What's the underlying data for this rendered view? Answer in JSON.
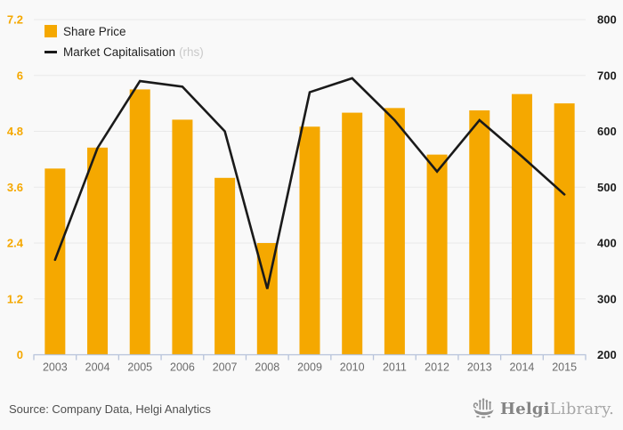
{
  "colors": {
    "accent": "#F5A800",
    "line": "#1a1a1a",
    "grid": "#e9e9e9",
    "axis": "#b7c3da",
    "left_tick_text": "#F5A800",
    "right_tick_text": "#1c1c1c",
    "year_text": "#6b6b6b",
    "legend_text": "#222222",
    "rhs_text": "#c9c9c9",
    "source_text": "#4f4f4f",
    "logo_dark": "#848484",
    "logo_light": "#a8a8a8",
    "bg": "#f9f9f9"
  },
  "legend": {
    "items": [
      {
        "label": "Share Price",
        "type": "bar"
      },
      {
        "label": "Market Capitalisation",
        "suffix": "(rhs)",
        "type": "line"
      }
    ]
  },
  "chart_data": {
    "type": "bar",
    "combo": "bar+line",
    "title": "",
    "categories": [
      "2003",
      "2004",
      "2005",
      "2006",
      "2007",
      "2008",
      "2009",
      "2010",
      "2011",
      "2012",
      "2013",
      "2014",
      "2015"
    ],
    "series": [
      {
        "name": "Share Price",
        "type": "bar",
        "axis": "left",
        "values": [
          4.0,
          4.45,
          5.7,
          5.05,
          3.8,
          2.4,
          4.9,
          5.2,
          5.3,
          4.3,
          5.25,
          5.6,
          5.4
        ]
      },
      {
        "name": "Market Capitalisation",
        "type": "line",
        "axis": "right",
        "values": [
          370,
          570,
          690,
          680,
          600,
          318,
          670,
          695,
          620,
          528,
          620,
          555,
          487
        ]
      }
    ],
    "left_axis": {
      "range": [
        0,
        7.2
      ],
      "tick_values": [
        0,
        1.2,
        2.4,
        3.6,
        4.8,
        6,
        7.2
      ],
      "tick_labels": [
        "0",
        "1.2",
        "2.4",
        "3.6",
        "4.8",
        "6",
        "7.2"
      ]
    },
    "right_axis": {
      "range": [
        200,
        800
      ],
      "tick_values": [
        200,
        300,
        400,
        500,
        600,
        700,
        800
      ],
      "tick_labels": [
        "200",
        "300",
        "400",
        "500",
        "600",
        "700",
        "800"
      ]
    },
    "grid": true,
    "legend_position": "top-left"
  },
  "footer": {
    "source": "Source: Company Data, Helgi Analytics",
    "logo_bold": "Helgi",
    "logo_light": "Library."
  }
}
